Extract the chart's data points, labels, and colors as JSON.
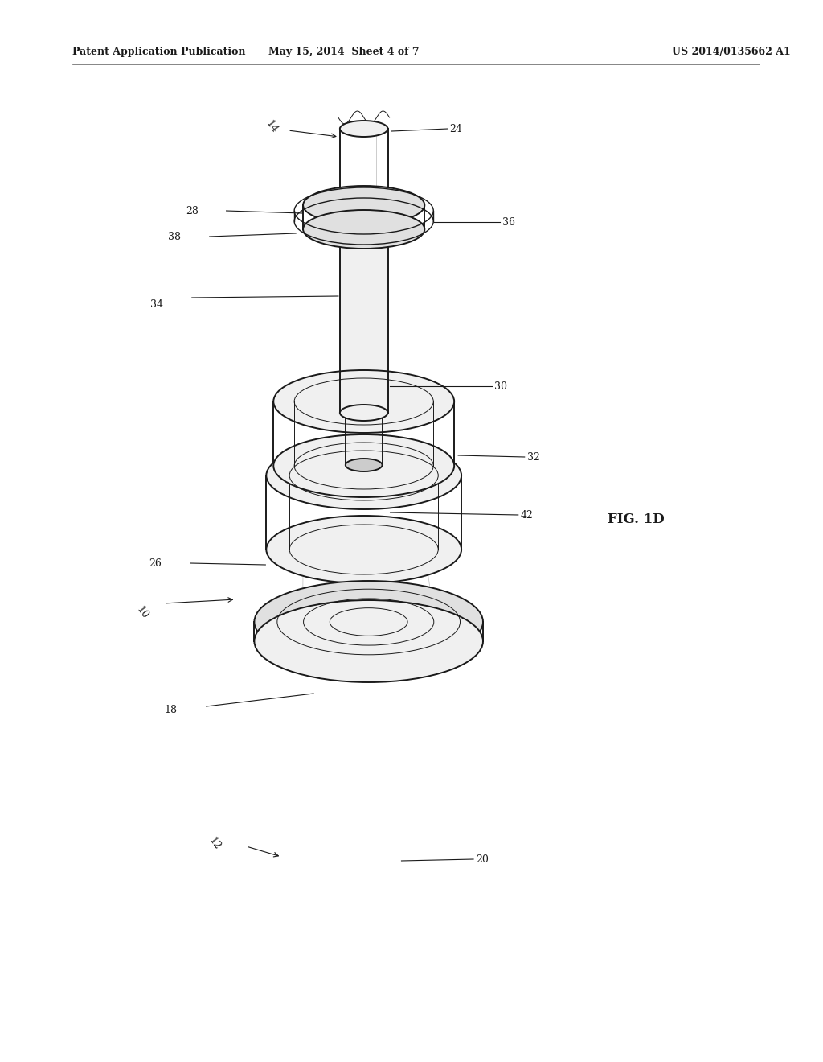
{
  "bg_color": "#ffffff",
  "line_color": "#1a1a1a",
  "light_color": "#aaaaaa",
  "shade_color": "#cccccc",
  "fill_light": "#f0f0f0",
  "fill_mid": "#e0e0e0",
  "fill_dark": "#cccccc",
  "header_left": "Patent Application Publication",
  "header_mid": "May 15, 2014  Sheet 4 of 7",
  "header_right": "US 2014/0135662 A1",
  "fig_label": "FIG. 1D",
  "label_fontsize": 9,
  "header_fontsize": 9
}
